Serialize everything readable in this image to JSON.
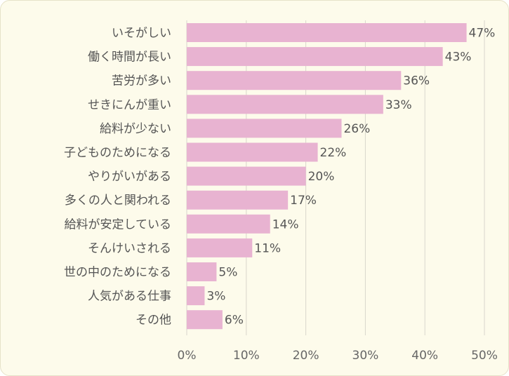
{
  "chart_data": {
    "type": "bar",
    "orientation": "horizontal",
    "categories": [
      "いそがしい",
      "働く時間が長い",
      "苦労が多い",
      "せきにんが重い",
      "給料が少ない",
      "子どものためになる",
      "やりがいがある",
      "多くの人と関われる",
      "給料が安定している",
      "そんけいされる",
      "世の中のためになる",
      "人気がある仕事",
      "その他"
    ],
    "values": [
      47,
      43,
      36,
      33,
      26,
      22,
      20,
      17,
      14,
      11,
      5,
      3,
      6
    ],
    "value_labels": [
      "47%",
      "43%",
      "36%",
      "33%",
      "26%",
      "22%",
      "20%",
      "17%",
      "14%",
      "11%",
      "5%",
      "3%",
      "6%"
    ],
    "xlim": [
      0,
      50
    ],
    "x_ticks": [
      0,
      10,
      20,
      30,
      40,
      50
    ],
    "x_tick_labels": [
      "0%",
      "10%",
      "20%",
      "30%",
      "40%",
      "50%"
    ],
    "grid": "vertical",
    "colors": {
      "bar": "#e8b3d1",
      "grid": "#d9d6cc",
      "background": "#fdfbeb"
    }
  }
}
